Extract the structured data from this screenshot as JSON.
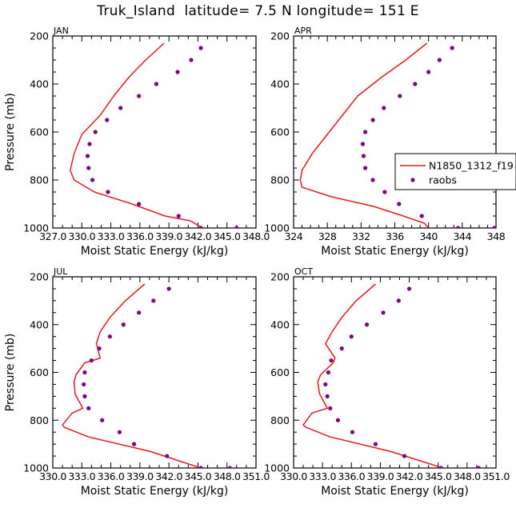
{
  "page": {
    "title": "Truk_Island  latitude= 7.5 N longitude= 151 E"
  },
  "colors": {
    "model": "#e41a1c",
    "obs": "#800080",
    "axis": "#000000"
  },
  "chart_data": [
    {
      "type": "line",
      "panel_label": "JAN",
      "xlabel": "Moist Static Energy (kJ/kg)",
      "ylabel": "Pressure (mb)",
      "xlim": [
        327.0,
        348.0
      ],
      "ylim": [
        1000,
        200
      ],
      "x_tick_labels": [
        "327.0",
        "330.0",
        "333.0",
        "336.0",
        "339.0",
        "342.0",
        "345.0",
        "348.0"
      ],
      "x_tick_values": [
        327,
        330,
        333,
        336,
        339,
        342,
        345,
        348
      ],
      "y_ticks": [
        200,
        400,
        600,
        800,
        1000
      ],
      "grid": false,
      "series": [
        {
          "kind": "line",
          "x": [
            338.5,
            336.6,
            334.9,
            333.3,
            331.9,
            330.0,
            329.2,
            328.8,
            329.2,
            331.3,
            335.2,
            338.6,
            341.2,
            342.5
          ],
          "y": [
            230,
            300,
            370,
            450,
            530,
            610,
            690,
            760,
            800,
            850,
            900,
            950,
            970,
            1000
          ]
        },
        {
          "kind": "scatter",
          "x": [
            342.3,
            341.3,
            339.9,
            337.7,
            335.9,
            334.0,
            332.6,
            331.4,
            330.8,
            330.6,
            330.7,
            331.1,
            332.7,
            335.9,
            340.0,
            342.3,
            346.0
          ],
          "y": [
            250,
            300,
            350,
            400,
            450,
            500,
            550,
            600,
            650,
            700,
            750,
            800,
            850,
            900,
            950,
            1000,
            1000
          ]
        }
      ]
    },
    {
      "type": "line",
      "panel_label": "APR",
      "xlabel": "Moist Static Energy (kJ/kg)",
      "ylabel": "",
      "xlim": [
        324,
        348
      ],
      "ylim": [
        1000,
        200
      ],
      "x_tick_labels": [
        "324",
        "328",
        "332",
        "336",
        "340",
        "344",
        "348"
      ],
      "x_tick_values": [
        324,
        328,
        332,
        336,
        340,
        344,
        348
      ],
      "y_ticks": [
        200,
        400,
        600,
        800,
        1000
      ],
      "grid": false,
      "legend": {
        "position": "right",
        "entries": [
          "N1850_1312_f19",
          "raobs"
        ]
      },
      "series": [
        {
          "kind": "line",
          "name": "N1850_1312_f19",
          "x": [
            339.8,
            337.3,
            334.5,
            331.6,
            329.8,
            328.0,
            326.2,
            325.0,
            324.8,
            325.0,
            328.5,
            333.5,
            337.0,
            339.5,
            340.0
          ],
          "y": [
            230,
            300,
            370,
            450,
            530,
            610,
            690,
            760,
            800,
            830,
            870,
            910,
            950,
            980,
            1000
          ]
        },
        {
          "kind": "scatter",
          "name": "raobs",
          "x": [
            342.8,
            341.3,
            340.0,
            338.4,
            336.6,
            334.7,
            333.4,
            332.5,
            332.2,
            332.3,
            332.5,
            333.4,
            334.8,
            336.5,
            339.2,
            343.5,
            347.8
          ],
          "y": [
            250,
            300,
            350,
            400,
            450,
            500,
            550,
            600,
            650,
            700,
            750,
            800,
            850,
            900,
            950,
            1000,
            1000
          ]
        }
      ]
    },
    {
      "type": "line",
      "panel_label": "JUL",
      "xlabel": "Moist Static Energy (kJ/kg)",
      "ylabel": "Pressure (mb)",
      "xlim": [
        330.0,
        351.0
      ],
      "ylim": [
        1000,
        200
      ],
      "x_tick_labels": [
        "330.0",
        "333.0",
        "336.0",
        "339.0",
        "342.0",
        "345.0",
        "348.0",
        "351.0"
      ],
      "x_tick_values": [
        330,
        333,
        336,
        339,
        342,
        345,
        348,
        351
      ],
      "y_ticks": [
        200,
        400,
        600,
        800,
        1000
      ],
      "grid": false,
      "series": [
        {
          "kind": "line",
          "x": [
            339.5,
            337.5,
            335.9,
            334.9,
            334.5,
            334.9,
            333.3,
            332.4,
            332.2,
            332.3,
            333.1,
            332.0,
            331.0,
            331.2,
            333.7,
            340.0,
            345.3
          ],
          "y": [
            230,
            300,
            370,
            430,
            480,
            540,
            560,
            610,
            640,
            690,
            750,
            770,
            820,
            830,
            870,
            930,
            1000
          ]
        },
        {
          "kind": "scatter",
          "x": [
            342.0,
            340.4,
            338.9,
            337.3,
            335.9,
            334.8,
            334.0,
            333.3,
            333.2,
            333.3,
            333.7,
            335.1,
            336.9,
            338.4,
            341.8,
            345.3,
            348.3
          ],
          "y": [
            250,
            300,
            350,
            400,
            450,
            500,
            550,
            600,
            650,
            700,
            750,
            800,
            850,
            900,
            950,
            1000,
            1000
          ]
        }
      ]
    },
    {
      "type": "line",
      "panel_label": "OCT",
      "xlabel": "Moist Static Energy (kJ/kg)",
      "ylabel": "",
      "xlim": [
        330.0,
        351.0
      ],
      "ylim": [
        1000,
        200
      ],
      "x_tick_labels": [
        "330.0",
        "333.0",
        "336.0",
        "339.0",
        "342.0",
        "345.0",
        "348.0",
        "351.0"
      ],
      "x_tick_values": [
        330,
        333,
        336,
        339,
        342,
        345,
        348,
        351
      ],
      "y_ticks": [
        200,
        400,
        600,
        800,
        1000
      ],
      "grid": false,
      "series": [
        {
          "kind": "line",
          "x": [
            338.5,
            336.5,
            335.0,
            334.0,
            333.3,
            334.3,
            334.1,
            332.8,
            332.5,
            332.7,
            333.5,
            331.9,
            331.0,
            331.3,
            333.8,
            340.0,
            345.5
          ],
          "y": [
            230,
            300,
            370,
            430,
            480,
            540,
            560,
            610,
            640,
            690,
            750,
            770,
            820,
            830,
            870,
            930,
            1000
          ]
        },
        {
          "kind": "scatter",
          "x": [
            342.0,
            340.9,
            339.3,
            337.6,
            336.0,
            335.0,
            333.9,
            333.6,
            333.3,
            333.5,
            333.8,
            334.6,
            336.1,
            338.5,
            341.5,
            345.3,
            349.2
          ],
          "y": [
            250,
            300,
            350,
            400,
            450,
            500,
            550,
            600,
            650,
            700,
            750,
            800,
            850,
            900,
            950,
            1000,
            1000
          ]
        }
      ]
    }
  ]
}
